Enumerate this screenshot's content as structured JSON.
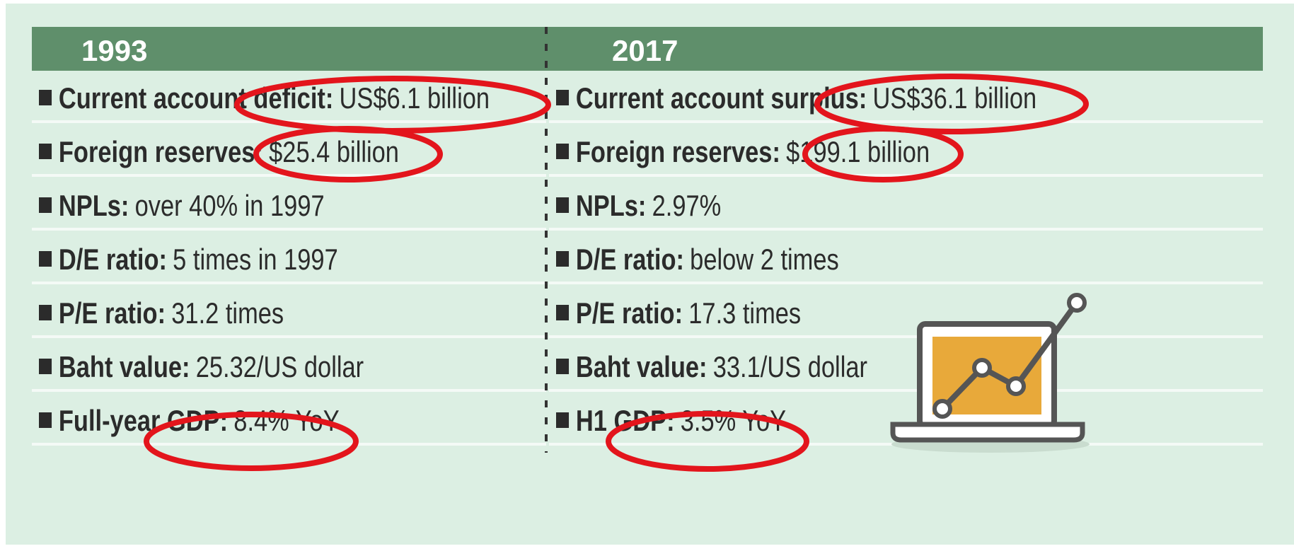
{
  "columns": [
    {
      "header": "1993",
      "rows": [
        {
          "label": "Current account deficit:",
          "value": "US$6.1 billion"
        },
        {
          "label": "Foreign reserves:",
          "value": "$25.4 billion"
        },
        {
          "label": "NPLs:",
          "value": "over 40% in 1997"
        },
        {
          "label": "D/E ratio:",
          "value": "5 times in 1997"
        },
        {
          "label": "P/E ratio:",
          "value": "31.2 times"
        },
        {
          "label": "Baht value:",
          "value": "25.32/US dollar"
        },
        {
          "label": "Full-year GDP:",
          "value": "8.4% YoY"
        }
      ]
    },
    {
      "header": "2017",
      "rows": [
        {
          "label": "Current account surplus:",
          "value": "US$36.1 billion"
        },
        {
          "label": "Foreign reserves:",
          "value": "$199.1 billion"
        },
        {
          "label": "NPLs:",
          "value": "2.97%"
        },
        {
          "label": "D/E ratio:",
          "value": "below 2 times"
        },
        {
          "label": "P/E ratio:",
          "value": "17.3 times"
        },
        {
          "label": "Baht value:",
          "value": "33.1/US dollar"
        },
        {
          "label": "H1 GDP:",
          "value": "3.5% YoY"
        }
      ]
    }
  ]
}
